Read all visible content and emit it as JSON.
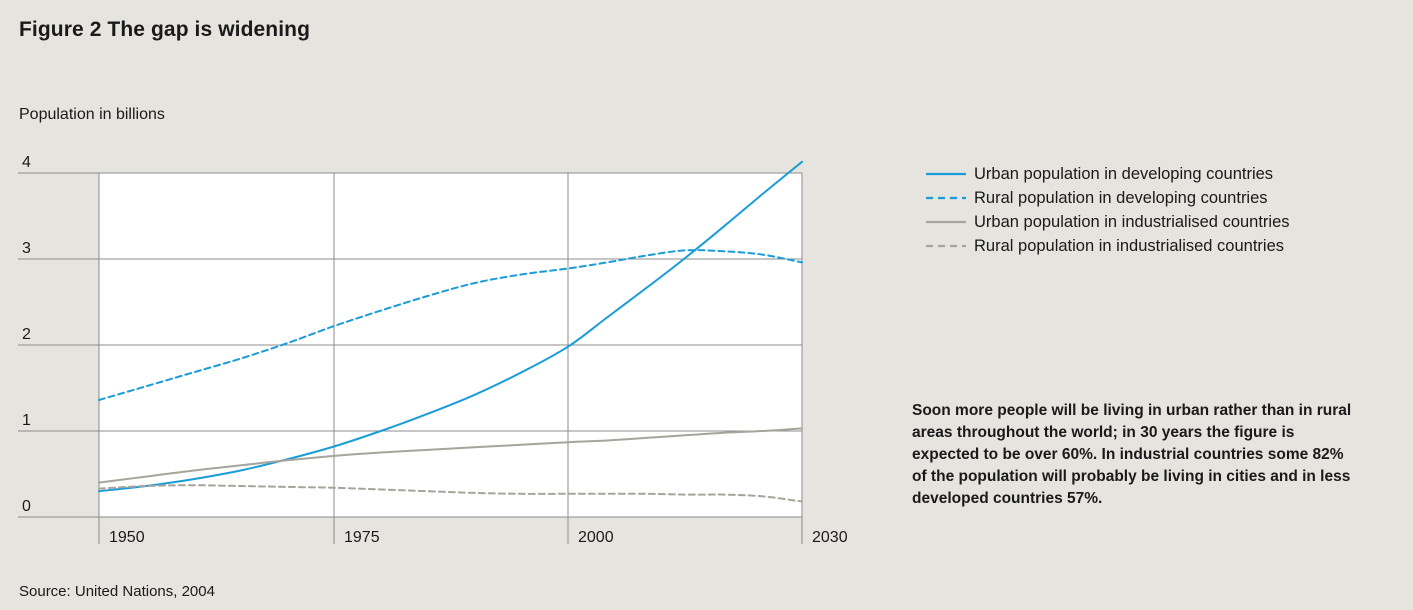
{
  "title": "Figure 2  The gap is widening",
  "source": "Source: United Nations, 2004",
  "note": "Soon more people will be living in urban rather than in rural areas throughout the world; in 30 years the figure is expected to be over 60%. In industrial countries some 82% of the population will probably be living in cities and in less developed countries 57%.",
  "colors": {
    "developing": "#1a9cd8",
    "industrialised": "#a6a49b",
    "grid": "#8c8c8c",
    "background": "#e6e4df"
  },
  "chart_data": {
    "type": "line",
    "title": "Figure 2  The gap is widening",
    "ylabel": "Population in billions",
    "xlabel": "",
    "xlim": [
      1950,
      2030
    ],
    "ylim": [
      0,
      4
    ],
    "x_ticks": [
      1950,
      1975,
      2000,
      2030
    ],
    "y_ticks": [
      0,
      1,
      2,
      3,
      4
    ],
    "grid": true,
    "legend_position": "right",
    "series": [
      {
        "name": "Urban population in developing countries",
        "style": "solid",
        "color_key": "developing",
        "x": [
          1950,
          1955,
          1960,
          1965,
          1970,
          1975,
          1980,
          1985,
          1990,
          1995,
          2000,
          2005,
          2010,
          2015,
          2020,
          2025,
          2030
        ],
        "y": [
          0.3,
          0.36,
          0.44,
          0.54,
          0.67,
          0.82,
          1.0,
          1.2,
          1.42,
          1.68,
          1.98,
          2.32,
          2.66,
          3.01,
          3.38,
          3.76,
          4.13
        ]
      },
      {
        "name": "Rural population in developing countries",
        "style": "dashed",
        "color_key": "developing",
        "x": [
          1950,
          1955,
          1960,
          1965,
          1970,
          1975,
          1980,
          1985,
          1990,
          1995,
          2000,
          2005,
          2010,
          2015,
          2020,
          2025,
          2030
        ],
        "y": [
          1.36,
          1.52,
          1.68,
          1.84,
          2.02,
          2.22,
          2.4,
          2.57,
          2.72,
          2.82,
          2.89,
          2.96,
          3.04,
          3.1,
          3.09,
          3.05,
          2.96
        ]
      },
      {
        "name": "Urban population in industrialised countries",
        "style": "solid",
        "color_key": "industrialised",
        "x": [
          1950,
          1955,
          1960,
          1965,
          1970,
          1975,
          1980,
          1985,
          1990,
          1995,
          2000,
          2005,
          2010,
          2015,
          2020,
          2025,
          2030
        ],
        "y": [
          0.4,
          0.47,
          0.54,
          0.6,
          0.66,
          0.71,
          0.75,
          0.78,
          0.81,
          0.84,
          0.87,
          0.89,
          0.92,
          0.95,
          0.98,
          1.0,
          1.03
        ]
      },
      {
        "name": "Rural population in industrialised countries",
        "style": "dashed",
        "color_key": "industrialised",
        "x": [
          1950,
          1955,
          1960,
          1965,
          1970,
          1975,
          1980,
          1985,
          1990,
          1995,
          2000,
          2005,
          2010,
          2015,
          2020,
          2025,
          2030
        ],
        "y": [
          0.33,
          0.36,
          0.37,
          0.36,
          0.35,
          0.34,
          0.32,
          0.3,
          0.28,
          0.27,
          0.27,
          0.27,
          0.27,
          0.26,
          0.26,
          0.24,
          0.18
        ]
      }
    ]
  }
}
